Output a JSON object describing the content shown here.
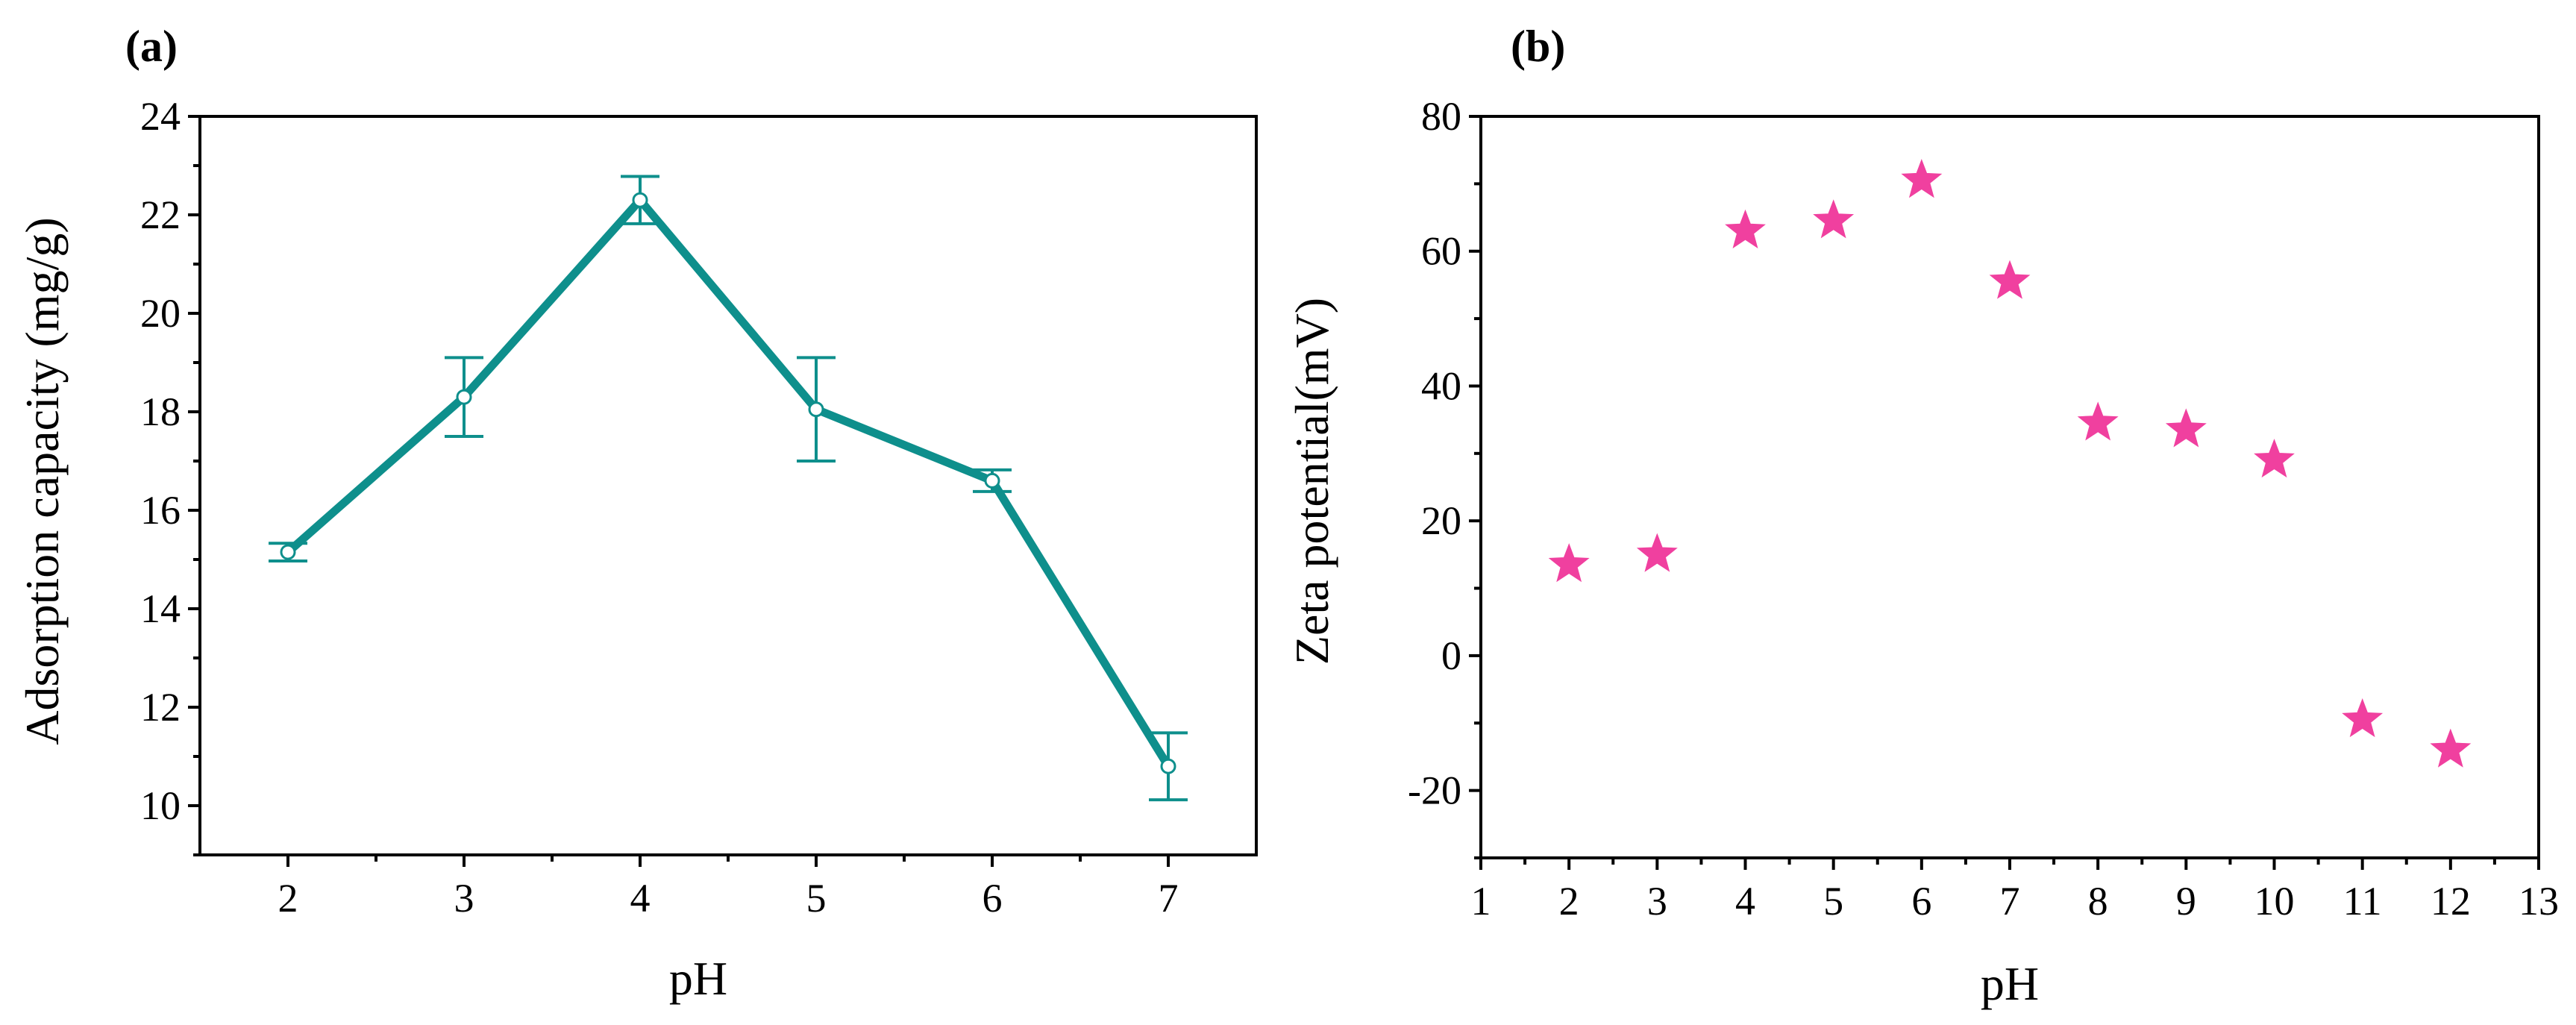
{
  "chart_data": [
    {
      "panel_label": "(a)",
      "type": "line",
      "xlabel": "pH",
      "ylabel": "Adsorption capacity (mg/g)",
      "xlim": [
        1.5,
        7.5
      ],
      "ylim": [
        9,
        24
      ],
      "xticks": [
        2,
        3,
        4,
        5,
        6,
        7
      ],
      "yticks": [
        10,
        12,
        14,
        16,
        18,
        20,
        22,
        24
      ],
      "x": [
        2,
        3,
        4,
        5,
        6,
        7
      ],
      "y": [
        15.15,
        18.3,
        22.3,
        18.05,
        16.6,
        10.8
      ],
      "error": [
        0.18,
        0.8,
        0.48,
        1.05,
        0.22,
        0.68
      ],
      "color": "#0e8f8c"
    },
    {
      "panel_label": "(b)",
      "type": "scatter",
      "xlabel": "pH",
      "ylabel": "Zeta potential(mV)",
      "xlim": [
        1,
        13
      ],
      "ylim": [
        -30,
        80
      ],
      "xticks": [
        1,
        2,
        3,
        4,
        5,
        6,
        7,
        8,
        9,
        10,
        11,
        12,
        13
      ],
      "yticks": [
        -20,
        0,
        20,
        40,
        60,
        80
      ],
      "x": [
        2,
        3,
        4,
        5,
        6,
        7,
        8,
        9,
        10,
        11,
        12
      ],
      "y": [
        13.5,
        15,
        63,
        64.5,
        70.5,
        55.5,
        34.5,
        33.5,
        29,
        -9.5,
        -14
      ],
      "marker": "star",
      "color": "#f0409f"
    }
  ]
}
